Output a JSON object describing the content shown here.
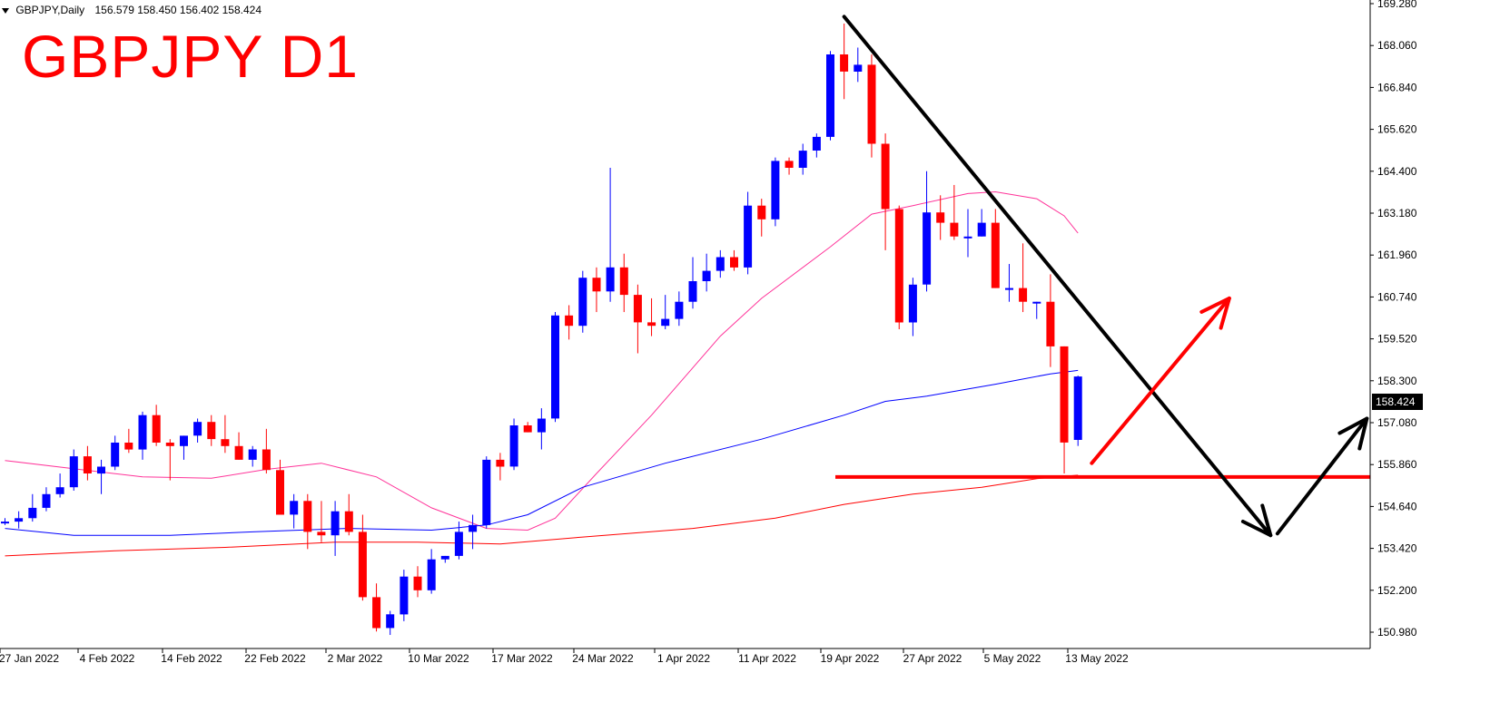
{
  "header": {
    "symbol": "GBPJPY,Daily",
    "ohlc": "156.579 158.450 156.402 158.424"
  },
  "title": "GBPJPY D1",
  "current_price_label": "158.424",
  "colors": {
    "bull": "#0000ff",
    "bear": "#ff0000",
    "ma_fast": "#ff3399",
    "ma_mid": "#0000ff",
    "ma_slow": "#ff0000",
    "trendline": "#000000",
    "support": "#ff0000",
    "arrow_up": "#ff0000",
    "arrow_path": "#000000"
  },
  "chart_data": {
    "type": "candlestick",
    "ylim": [
      150.5,
      169.28
    ],
    "y_ticks": [
      "169.280",
      "168.060",
      "166.840",
      "165.620",
      "164.400",
      "163.180",
      "161.960",
      "160.740",
      "159.520",
      "158.300",
      "157.080",
      "155.860",
      "154.640",
      "153.420",
      "152.200",
      "150.980"
    ],
    "x_tick_labels": [
      "27 Jan 2022",
      "4 Feb 2022",
      "14 Feb 2022",
      "22 Feb 2022",
      "2 Mar 2022",
      "10 Mar 2022",
      "17 Mar 2022",
      "24 Mar 2022",
      "1 Apr 2022",
      "11 Apr 2022",
      "19 Apr 2022",
      "27 Apr 2022",
      "5 May 2022",
      "13 May 2022"
    ],
    "candles": [
      [
        154.2,
        154.3,
        154.1,
        154.2
      ],
      [
        154.2,
        154.5,
        154.0,
        154.3
      ],
      [
        154.3,
        155.0,
        154.2,
        154.6
      ],
      [
        154.6,
        155.2,
        154.5,
        155.0
      ],
      [
        155.0,
        155.6,
        154.9,
        155.2
      ],
      [
        155.2,
        156.3,
        155.1,
        156.1
      ],
      [
        156.1,
        156.4,
        155.4,
        155.6
      ],
      [
        155.6,
        156.0,
        155.0,
        155.8
      ],
      [
        155.8,
        156.7,
        155.7,
        156.5
      ],
      [
        156.5,
        156.9,
        156.2,
        156.3
      ],
      [
        156.3,
        157.4,
        156.0,
        157.3
      ],
      [
        157.3,
        157.6,
        156.4,
        156.5
      ],
      [
        156.5,
        156.6,
        155.4,
        156.4
      ],
      [
        156.4,
        156.7,
        156.0,
        156.7
      ],
      [
        156.7,
        157.2,
        156.5,
        157.1
      ],
      [
        157.1,
        157.3,
        156.4,
        156.6
      ],
      [
        156.6,
        157.3,
        156.2,
        156.4
      ],
      [
        156.4,
        156.8,
        156.0,
        156.0
      ],
      [
        156.0,
        156.4,
        155.8,
        156.3
      ],
      [
        156.3,
        156.9,
        155.6,
        155.7
      ],
      [
        155.7,
        156.0,
        154.4,
        154.4
      ],
      [
        154.4,
        155.0,
        154.0,
        154.8
      ],
      [
        154.8,
        155.0,
        153.4,
        153.9
      ],
      [
        153.9,
        154.8,
        153.6,
        153.8
      ],
      [
        153.8,
        154.8,
        153.2,
        154.5
      ],
      [
        154.5,
        155.0,
        153.8,
        153.9
      ],
      [
        153.9,
        154.4,
        151.9,
        152.0
      ],
      [
        152.0,
        152.4,
        151.0,
        151.1
      ],
      [
        151.1,
        151.6,
        150.9,
        151.5
      ],
      [
        151.5,
        152.8,
        151.3,
        152.6
      ],
      [
        152.6,
        152.9,
        152.0,
        152.2
      ],
      [
        152.2,
        153.4,
        152.1,
        153.1
      ],
      [
        153.1,
        153.2,
        153.0,
        153.2
      ],
      [
        153.2,
        154.2,
        153.1,
        153.9
      ],
      [
        153.9,
        154.4,
        153.4,
        154.1
      ],
      [
        154.1,
        156.1,
        154.0,
        156.0
      ],
      [
        156.0,
        156.2,
        155.4,
        155.8
      ],
      [
        155.8,
        157.2,
        155.7,
        157.0
      ],
      [
        157.0,
        157.1,
        156.8,
        156.8
      ],
      [
        156.8,
        157.5,
        156.3,
        157.2
      ],
      [
        157.2,
        160.3,
        157.1,
        160.2
      ],
      [
        160.2,
        160.5,
        159.5,
        159.9
      ],
      [
        159.9,
        161.5,
        159.7,
        161.3
      ],
      [
        161.3,
        161.6,
        160.3,
        160.9
      ],
      [
        160.9,
        164.5,
        160.6,
        161.6
      ],
      [
        161.6,
        162.0,
        160.3,
        160.8
      ],
      [
        160.8,
        161.1,
        159.1,
        160.0
      ],
      [
        160.0,
        160.7,
        159.6,
        159.9
      ],
      [
        159.9,
        160.8,
        159.8,
        160.1
      ],
      [
        160.1,
        160.9,
        159.9,
        160.6
      ],
      [
        160.6,
        161.9,
        160.4,
        161.2
      ],
      [
        161.2,
        162.0,
        160.9,
        161.5
      ],
      [
        161.5,
        162.1,
        161.3,
        161.9
      ],
      [
        161.9,
        162.1,
        161.5,
        161.6
      ],
      [
        161.6,
        163.8,
        161.4,
        163.4
      ],
      [
        163.4,
        163.6,
        162.5,
        163.0
      ],
      [
        163.0,
        164.8,
        162.8,
        164.7
      ],
      [
        164.7,
        164.8,
        164.3,
        164.5
      ],
      [
        164.5,
        165.2,
        164.3,
        165.0
      ],
      [
        165.0,
        165.5,
        164.8,
        165.4
      ],
      [
        165.4,
        167.9,
        165.3,
        167.8
      ],
      [
        167.8,
        168.7,
        166.5,
        167.3
      ],
      [
        167.3,
        168.0,
        167.0,
        167.5
      ],
      [
        167.5,
        167.8,
        164.8,
        165.2
      ],
      [
        165.2,
        165.5,
        162.1,
        163.3
      ],
      [
        163.3,
        163.4,
        159.8,
        160.0
      ],
      [
        160.0,
        161.3,
        159.6,
        161.1
      ],
      [
        161.1,
        164.4,
        160.9,
        163.2
      ],
      [
        163.2,
        163.7,
        162.4,
        162.9
      ],
      [
        162.9,
        164.0,
        162.4,
        162.5
      ],
      [
        162.5,
        163.3,
        161.9,
        162.5
      ],
      [
        162.5,
        163.3,
        162.5,
        162.9
      ],
      [
        162.9,
        163.3,
        161.0,
        161.0
      ],
      [
        161.0,
        161.7,
        160.6,
        161.0
      ],
      [
        161.0,
        162.3,
        160.3,
        160.6
      ],
      [
        160.6,
        160.6,
        160.1,
        160.6
      ],
      [
        160.6,
        161.4,
        158.7,
        159.3
      ],
      [
        159.3,
        159.3,
        155.6,
        156.5
      ],
      [
        156.579,
        158.45,
        156.402,
        158.424
      ]
    ],
    "series": [
      {
        "type": "ma",
        "color": "#ff3399",
        "points": [
          [
            0,
            155.98
          ],
          [
            10,
            155.5
          ],
          [
            15,
            155.46
          ],
          [
            19,
            155.72
          ],
          [
            23,
            155.9
          ],
          [
            27,
            155.5
          ],
          [
            31,
            154.6
          ],
          [
            35,
            154.0
          ],
          [
            38,
            153.95
          ],
          [
            40,
            154.3
          ],
          [
            43,
            155.6
          ],
          [
            47,
            157.3
          ],
          [
            52,
            159.6
          ],
          [
            55,
            160.7
          ],
          [
            60,
            162.2
          ],
          [
            63,
            163.15
          ],
          [
            66,
            163.4
          ],
          [
            70,
            163.75
          ],
          [
            72,
            163.8
          ],
          [
            75,
            163.6
          ],
          [
            77,
            163.1
          ],
          [
            78,
            162.6
          ]
        ]
      },
      {
        "type": "ma",
        "color": "#0000ff",
        "points": [
          [
            0,
            154.0
          ],
          [
            5,
            153.8
          ],
          [
            12,
            153.8
          ],
          [
            18,
            153.9
          ],
          [
            25,
            154.0
          ],
          [
            31,
            153.95
          ],
          [
            35,
            154.1
          ],
          [
            38,
            154.4
          ],
          [
            42,
            155.2
          ],
          [
            48,
            155.9
          ],
          [
            55,
            156.6
          ],
          [
            61,
            157.3
          ],
          [
            64,
            157.7
          ],
          [
            67,
            157.85
          ],
          [
            72,
            158.2
          ],
          [
            76,
            158.5
          ],
          [
            78,
            158.6
          ]
        ]
      },
      {
        "type": "ma",
        "color": "#ff0000",
        "points": [
          [
            0,
            153.2
          ],
          [
            8,
            153.35
          ],
          [
            16,
            153.45
          ],
          [
            24,
            153.6
          ],
          [
            30,
            153.6
          ],
          [
            36,
            153.55
          ],
          [
            42,
            153.75
          ],
          [
            50,
            154.0
          ],
          [
            56,
            154.3
          ],
          [
            61,
            154.7
          ],
          [
            66,
            155.0
          ],
          [
            71,
            155.2
          ],
          [
            75,
            155.45
          ],
          [
            78,
            155.55
          ]
        ]
      }
    ],
    "annotations": {
      "support_level": 155.5,
      "trendline": {
        "from_index": 61,
        "from_price": 168.9,
        "to_index": 92,
        "to_price": 153.8
      },
      "projection_up": {
        "from_index": 79,
        "from_price": 155.9,
        "to_index": 89,
        "to_price": 160.7
      },
      "projection_bounce": {
        "from_index": 92.5,
        "from_price": 153.85,
        "to_index": 99,
        "to_price": 157.2
      }
    }
  }
}
